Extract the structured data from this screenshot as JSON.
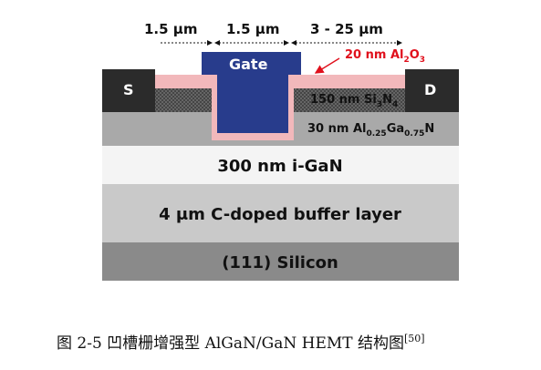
{
  "dimensions": {
    "left": "1.5 μm",
    "middle": "1.5 μm",
    "right": "3 - 25 μm"
  },
  "labels": {
    "source": "S",
    "drain": "D",
    "gate": "Gate",
    "oxide_prefix": "20 nm Al",
    "oxide_sub1": "2",
    "oxide_mid": "O",
    "oxide_sub2": "3",
    "sin_prefix": "150 nm Si",
    "sin_sub1": "3",
    "sin_mid": "N",
    "sin_sub2": "4",
    "algan_prefix": "30 nm Al",
    "algan_sub1": "0.25",
    "algan_mid": "Ga",
    "algan_sub2": "0.75",
    "algan_end": "N"
  },
  "layers": {
    "igan": "300 nm i-GaN",
    "buffer": "4 μm C-doped buffer layer",
    "silicon": "(111) Silicon"
  },
  "caption": {
    "text": "图 2-5 凹槽栅增强型 AlGaN/GaN HEMT 结构图",
    "ref": "[50]"
  },
  "colors": {
    "gate": "#283c8c",
    "oxide": "#f2b8bb",
    "contact": "#2b2b2b",
    "igan": "#f4f4f4",
    "buffer": "#c9c9c9",
    "silicon": "#8a8a8a",
    "algan": "#a9a9a9",
    "callout": "#e0101c"
  }
}
